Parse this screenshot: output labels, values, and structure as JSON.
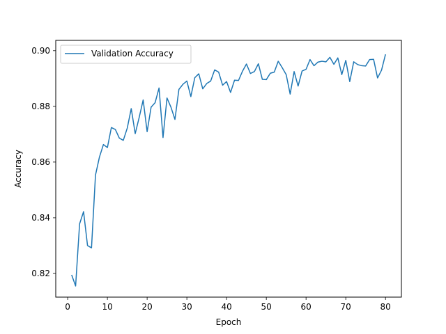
{
  "chart_data": {
    "type": "line",
    "title": "",
    "xlabel": "Epoch",
    "ylabel": "Accuracy",
    "xlim": [
      -3,
      84
    ],
    "ylim": [
      0.8115,
      0.9037
    ],
    "xticks": [
      0,
      10,
      20,
      30,
      40,
      50,
      60,
      70,
      80
    ],
    "yticks": [
      0.82,
      0.84,
      0.86,
      0.88,
      0.9
    ],
    "xtick_labels": [
      "0",
      "10",
      "20",
      "30",
      "40",
      "50",
      "60",
      "70",
      "80"
    ],
    "ytick_labels": [
      "0.82",
      "0.84",
      "0.86",
      "0.88",
      "0.90"
    ],
    "grid": false,
    "legend": {
      "placement": "upper-left"
    },
    "series": [
      {
        "name": "Validation Accuracy",
        "color": "#1f77b4",
        "x": [
          1,
          2,
          3,
          4,
          5,
          6,
          7,
          8,
          9,
          10,
          11,
          12,
          13,
          14,
          15,
          16,
          17,
          18,
          19,
          20,
          21,
          22,
          23,
          24,
          25,
          26,
          27,
          28,
          29,
          30,
          31,
          32,
          33,
          34,
          35,
          36,
          37,
          38,
          39,
          40,
          41,
          42,
          43,
          44,
          45,
          46,
          47,
          48,
          49,
          50,
          51,
          52,
          53,
          54,
          55,
          56,
          57,
          58,
          59,
          60,
          61,
          62,
          63,
          64,
          65,
          66,
          67,
          68,
          69,
          70,
          71,
          72,
          73,
          74,
          75,
          76,
          77,
          78,
          79,
          80
        ],
        "y": [
          0.8195,
          0.8155,
          0.8378,
          0.8422,
          0.83,
          0.8292,
          0.8553,
          0.8618,
          0.8663,
          0.8652,
          0.8724,
          0.8717,
          0.8686,
          0.8678,
          0.8722,
          0.8792,
          0.8702,
          0.876,
          0.8823,
          0.8709,
          0.8797,
          0.8813,
          0.8866,
          0.8688,
          0.883,
          0.8797,
          0.8753,
          0.8861,
          0.8879,
          0.8891,
          0.8835,
          0.8903,
          0.8917,
          0.8863,
          0.8882,
          0.8891,
          0.8931,
          0.8923,
          0.8876,
          0.8889,
          0.885,
          0.8894,
          0.8893,
          0.8926,
          0.8952,
          0.8918,
          0.8925,
          0.8953,
          0.8897,
          0.8896,
          0.8919,
          0.8923,
          0.8962,
          0.8939,
          0.8914,
          0.8844,
          0.8925,
          0.8873,
          0.8927,
          0.8933,
          0.8968,
          0.8946,
          0.8959,
          0.8962,
          0.896,
          0.8976,
          0.8951,
          0.8974,
          0.8914,
          0.8965,
          0.8889,
          0.896,
          0.895,
          0.8946,
          0.8945,
          0.8968,
          0.8969,
          0.8902,
          0.893,
          0.8987
        ]
      }
    ]
  }
}
